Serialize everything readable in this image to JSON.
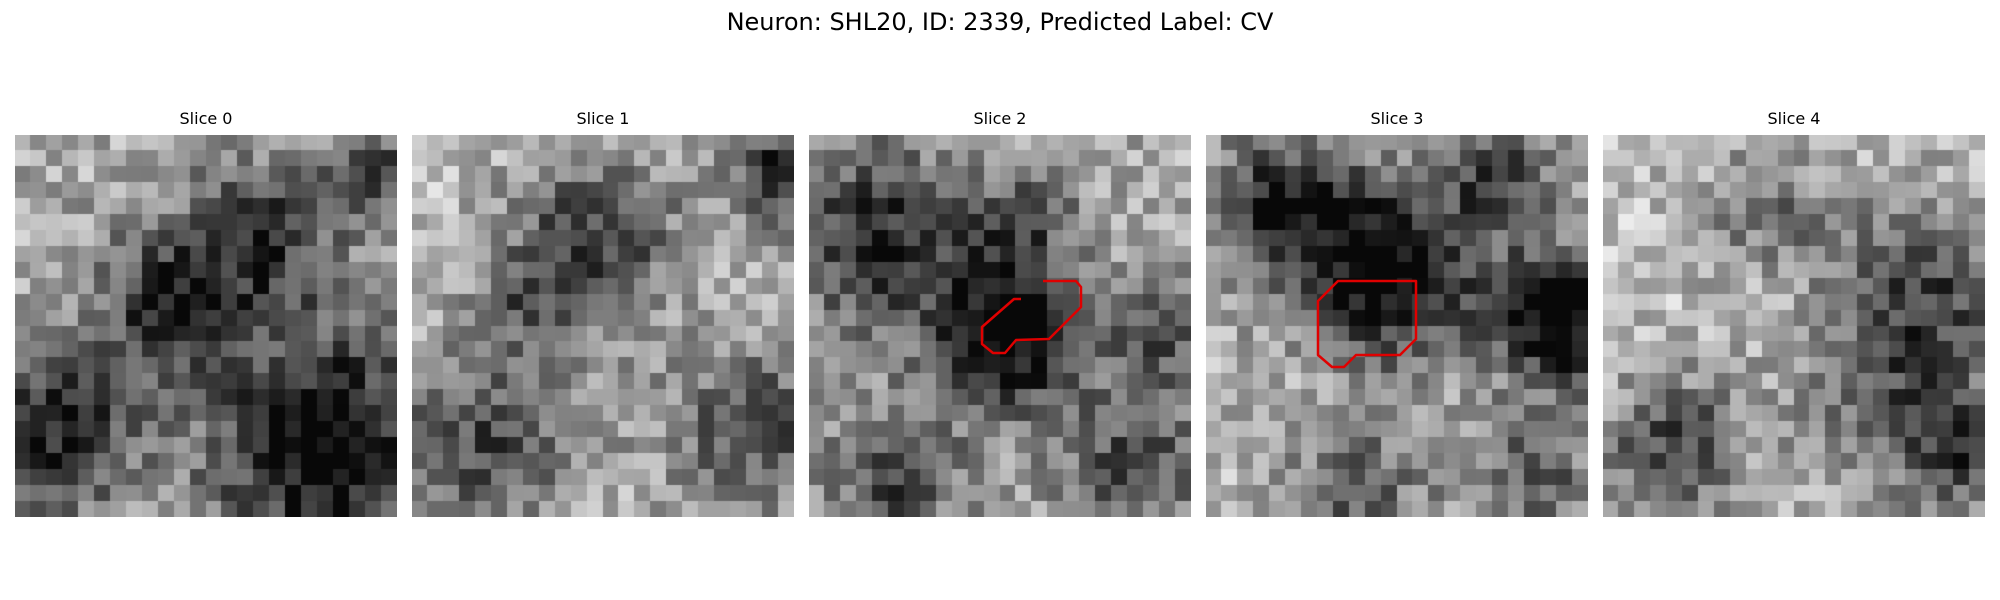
{
  "figure": {
    "title": "Neuron: SHL20, ID: 2339, Predicted Label: CV"
  },
  "colors": {
    "background": "#ffffff",
    "contour": "#e00000"
  },
  "slices": [
    {
      "label": "Slice 0",
      "has_contour": false
    },
    {
      "label": "Slice 1",
      "has_contour": false
    },
    {
      "label": "Slice 2",
      "has_contour": true
    },
    {
      "label": "Slice 3",
      "has_contour": true
    },
    {
      "label": "Slice 4",
      "has_contour": false
    }
  ]
}
